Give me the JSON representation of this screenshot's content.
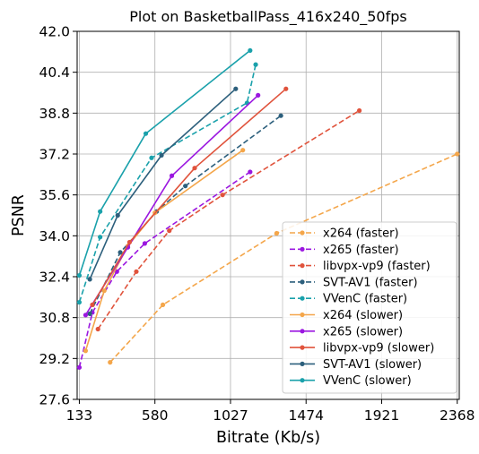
{
  "chart_data": {
    "type": "line",
    "title": "Plot on BasketballPass_416x240_50fps",
    "xlabel": "Bitrate (Kb/s)",
    "ylabel": "PSNR",
    "xlim": [
      120,
      2380
    ],
    "ylim": [
      27.6,
      42.0
    ],
    "xticks": [
      "133",
      "580",
      "1027",
      "1474",
      "1921",
      "2368"
    ],
    "yticks": [
      "27.6",
      "29.2",
      "30.8",
      "32.4",
      "34.0",
      "35.6",
      "37.2",
      "38.8",
      "40.4",
      "42.0"
    ],
    "grid": true,
    "legend_position": "lower-right",
    "series": [
      {
        "name": "x264 (faster)",
        "color": "#f4a64a",
        "style": "dashed",
        "points": [
          [
            315,
            29.05
          ],
          [
            627,
            31.3
          ],
          [
            1300,
            34.1
          ],
          [
            2368,
            37.2
          ]
        ]
      },
      {
        "name": "x265 (faster)",
        "color": "#9b17e0",
        "style": "dashed",
        "points": [
          [
            133,
            28.85
          ],
          [
            210,
            31.0
          ],
          [
            355,
            32.6
          ],
          [
            520,
            33.7
          ],
          [
            1143,
            36.5
          ]
        ]
      },
      {
        "name": "libvpx-vp9 (faster)",
        "color": "#e0533c",
        "style": "dashed",
        "points": [
          [
            243,
            30.35
          ],
          [
            470,
            32.6
          ],
          [
            665,
            34.2
          ],
          [
            980,
            35.6
          ],
          [
            1789,
            38.9
          ]
        ]
      },
      {
        "name": "SVT-AV1 (faster)",
        "color": "#2c5f7c",
        "style": "dashed",
        "points": [
          [
            195,
            30.95
          ],
          [
            375,
            33.35
          ],
          [
            590,
            34.95
          ],
          [
            760,
            35.95
          ],
          [
            1325,
            38.7
          ]
        ]
      },
      {
        "name": "VVenC (faster)",
        "color": "#1aa1ab",
        "style": "dashed",
        "points": [
          [
            133,
            31.4
          ],
          [
            256,
            33.95
          ],
          [
            560,
            37.05
          ],
          [
            1125,
            39.2
          ],
          [
            1176,
            40.7
          ]
        ]
      },
      {
        "name": "x264 (slower)",
        "color": "#f4a64a",
        "style": "solid",
        "points": [
          [
            170,
            29.5
          ],
          [
            280,
            31.85
          ],
          [
            420,
            33.6
          ],
          [
            580,
            34.9
          ],
          [
            1100,
            37.35
          ]
        ]
      },
      {
        "name": "x265 (slower)",
        "color": "#9b17e0",
        "style": "solid",
        "points": [
          [
            170,
            30.9
          ],
          [
            420,
            33.55
          ],
          [
            680,
            36.35
          ],
          [
            1190,
            39.5
          ]
        ]
      },
      {
        "name": "libvpx-vp9 (slower)",
        "color": "#e0533c",
        "style": "solid",
        "points": [
          [
            210,
            31.3
          ],
          [
            430,
            33.75
          ],
          [
            815,
            36.65
          ],
          [
            1355,
            39.75
          ]
        ]
      },
      {
        "name": "SVT-AV1 (slower)",
        "color": "#2c5f7c",
        "style": "solid",
        "points": [
          [
            195,
            32.3
          ],
          [
            360,
            34.8
          ],
          [
            619,
            37.15
          ],
          [
            1058,
            39.75
          ]
        ]
      },
      {
        "name": "VVenC (slower)",
        "color": "#1aa1ab",
        "style": "solid",
        "points": [
          [
            133,
            32.45
          ],
          [
            256,
            34.95
          ],
          [
            526,
            38.0
          ],
          [
            1143,
            41.25
          ]
        ]
      }
    ]
  }
}
